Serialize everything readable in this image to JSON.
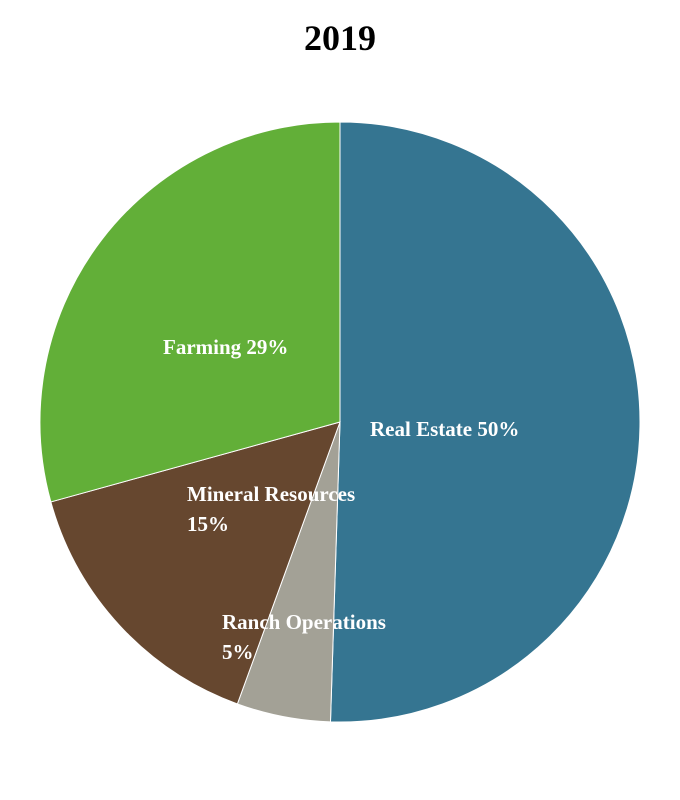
{
  "chart_data": {
    "type": "pie",
    "title": "2019",
    "categories": [
      "Real Estate",
      "Ranch Operations",
      "Mineral Resources",
      "Farming"
    ],
    "values": [
      50,
      5,
      15,
      29
    ],
    "value_labels": [
      "50%",
      "5%",
      "15%",
      "29%"
    ],
    "colors": [
      "#357591",
      "#a3a196",
      "#66472f",
      "#62af38"
    ]
  }
}
